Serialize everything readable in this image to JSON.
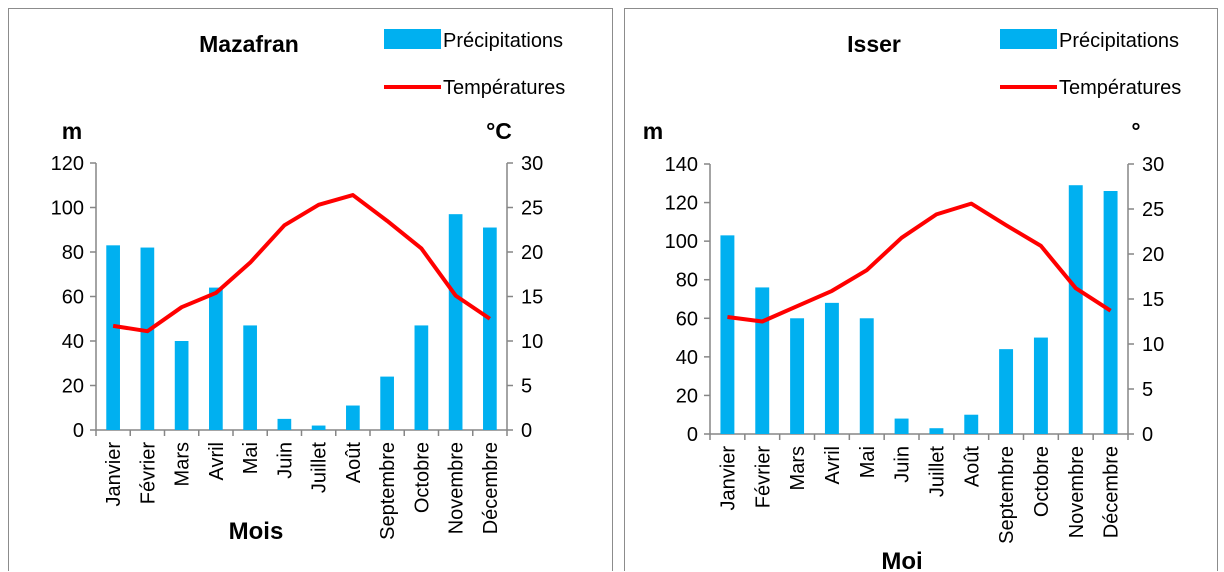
{
  "chart_data": [
    {
      "type": "bar",
      "title": "Mazafran",
      "xlabel": "Mois",
      "ylabel": "m",
      "y2label": "°C",
      "categories": [
        "Janvier",
        "Février",
        "Mars",
        "Avril",
        "Mai",
        "Juin",
        "Juillet",
        "Août",
        "Septembre",
        "Octobre",
        "Novembre",
        "Décembre"
      ],
      "ylim": [
        0,
        120
      ],
      "yticks": [
        0,
        20,
        40,
        60,
        80,
        100,
        120
      ],
      "y2lim": [
        0,
        30
      ],
      "y2ticks": [
        0,
        5,
        10,
        15,
        20,
        25,
        30
      ],
      "series": [
        {
          "name": "Précipitations",
          "kind": "bar",
          "axis": "left",
          "color": "#00B0F0",
          "values": [
            83,
            82,
            40,
            64,
            47,
            5,
            2,
            11,
            24,
            47,
            97,
            91
          ]
        },
        {
          "name": "Températures",
          "kind": "line",
          "axis": "right",
          "color": "#FF0000",
          "values": [
            11.7,
            11.1,
            13.8,
            15.4,
            18.8,
            23.0,
            25.3,
            26.4,
            23.5,
            20.4,
            15.1,
            12.5
          ]
        }
      ],
      "legend": "top-right",
      "grid": false
    },
    {
      "type": "bar",
      "title": "Isser",
      "xlabel": "Moi",
      "ylabel": "m",
      "y2label": "°",
      "categories": [
        "Janvier",
        "Février",
        "Mars",
        "Avril",
        "Mai",
        "Juin",
        "Juillet",
        "Août",
        "Septembre",
        "Octobre",
        "Novembre",
        "Décembre"
      ],
      "ylim": [
        0,
        140
      ],
      "yticks": [
        0,
        20,
        40,
        60,
        80,
        100,
        120,
        140
      ],
      "y2lim": [
        0,
        30
      ],
      "y2ticks": [
        0,
        5,
        10,
        15,
        20,
        25,
        30
      ],
      "series": [
        {
          "name": "Précipitations",
          "kind": "bar",
          "axis": "left",
          "color": "#00B0F0",
          "values": [
            103,
            76,
            60,
            68,
            60,
            8,
            3,
            10,
            44,
            50,
            129,
            126
          ]
        },
        {
          "name": "Températures",
          "kind": "line",
          "axis": "right",
          "color": "#FF0000",
          "values": [
            13.0,
            12.5,
            14.2,
            15.9,
            18.2,
            21.8,
            24.4,
            25.6,
            23.2,
            20.9,
            16.2,
            13.7
          ]
        }
      ],
      "legend": "top-right",
      "grid": false
    }
  ]
}
